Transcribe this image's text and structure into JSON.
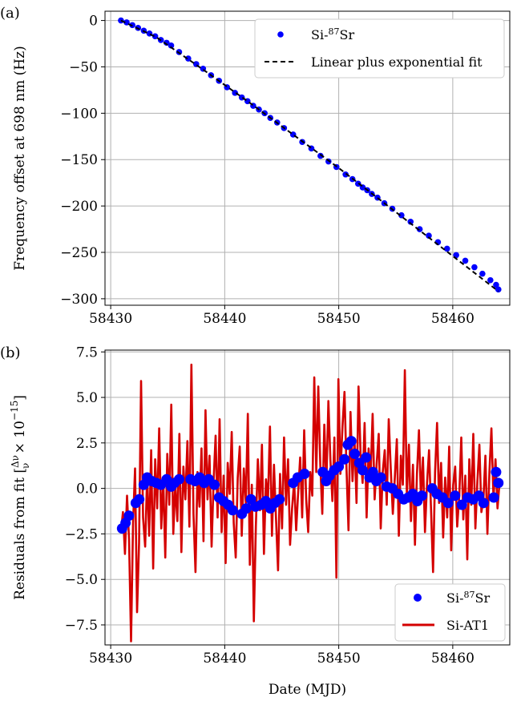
{
  "chart_data": [
    {
      "panel": "(a)",
      "type": "scatter",
      "xlabel": "",
      "ylabel": "Frequency offset at 698 nm (Hz)",
      "xlim": [
        58429.5,
        58465.0
      ],
      "ylim": [
        -307,
        10
      ],
      "xticks": [
        58430,
        58440,
        58450,
        58460
      ],
      "yticks": [
        0,
        -50,
        -100,
        -150,
        -200,
        -250,
        -300
      ],
      "grid": true,
      "legend_position": "top-right",
      "series": [
        {
          "name": "Si-$^{87}$Sr",
          "legend_text": "Si-87Sr",
          "kind": "scatter",
          "color": "#0000ff",
          "x": [
            58430.9,
            58431.4,
            58431.9,
            58432.4,
            58432.9,
            58433.4,
            58433.9,
            58434.4,
            58434.9,
            58435.3,
            58436.0,
            58436.8,
            58437.5,
            58438.1,
            58438.8,
            58439.5,
            58440.2,
            58440.9,
            58441.5,
            58442.0,
            58442.5,
            58443.0,
            58443.5,
            58444.0,
            58444.6,
            58445.2,
            58446.0,
            58446.8,
            58447.6,
            58448.4,
            58449.1,
            58449.8,
            58450.6,
            58451.2,
            58451.7,
            58452.1,
            58452.5,
            58452.9,
            58453.4,
            58454.0,
            58454.7,
            58455.5,
            58456.3,
            58457.1,
            58457.9,
            58458.7,
            58459.5,
            58460.3,
            58461.1,
            58461.9,
            58462.6,
            58463.3,
            58463.8,
            58464.0
          ],
          "y": [
            0,
            -2,
            -5,
            -8,
            -11,
            -14,
            -17,
            -21,
            -24,
            -27,
            -34,
            -41,
            -47,
            -52,
            -59,
            -65,
            -72,
            -78,
            -83,
            -87,
            -92,
            -96,
            -100,
            -105,
            -110,
            -116,
            -123,
            -131,
            -138,
            -146,
            -152,
            -158,
            -166,
            -171,
            -176,
            -180,
            -183,
            -187,
            -191,
            -197,
            -203,
            -210,
            -217,
            -225,
            -232,
            -239,
            -246,
            -253,
            -259,
            -266,
            -273,
            -280,
            -285,
            -290
          ]
        },
        {
          "name": "Linear plus exponential fit",
          "legend_text": "Linear plus exponential fit",
          "kind": "line",
          "style": "dashed",
          "color": "#000000",
          "x": [
            58430.9,
            58434.0,
            58438.0,
            58442.0,
            58446.0,
            58450.0,
            58454.0,
            58458.0,
            58462.0,
            58464.0
          ],
          "y": [
            0,
            -18,
            -52,
            -87,
            -123,
            -159,
            -197,
            -235,
            -273,
            -292
          ]
        }
      ]
    },
    {
      "panel": "(b)",
      "type": "line",
      "xlabel": "Date (MJD)",
      "ylabel": "Residuals from fit [Δν/ν × 10⁻¹⁵]",
      "ylabel_prefix": "Residuals from fit [",
      "ylabel_frac_num": "Δν",
      "ylabel_frac_den": "ν",
      "ylabel_suffix": " × 10",
      "ylabel_exp": "−15",
      "ylabel_close": "]",
      "xlim": [
        58429.5,
        58465.0
      ],
      "ylim": [
        -8.6,
        7.6
      ],
      "xticks": [
        58430,
        58440,
        58450,
        58460
      ],
      "yticks": [
        7.5,
        5.0,
        2.5,
        0.0,
        -2.5,
        -5.0,
        -7.5
      ],
      "grid": true,
      "legend_position": "lower-right",
      "series": [
        {
          "name": "Si-$^{87}$Sr",
          "legend_text": "Si-87Sr",
          "kind": "scatter",
          "color": "#0000ff",
          "x": [
            58431.0,
            58431.3,
            58431.6,
            58432.2,
            58432.5,
            58432.9,
            58433.2,
            58433.6,
            58434.0,
            58434.4,
            58434.9,
            58435.3,
            58435.6,
            58436.0,
            58437.0,
            58437.4,
            58437.8,
            58438.2,
            58438.6,
            58439.1,
            58439.5,
            58439.9,
            58440.3,
            58440.7,
            58441.5,
            58441.9,
            58442.3,
            58442.7,
            58443.2,
            58443.6,
            58444.0,
            58444.4,
            58444.8,
            58446.0,
            58446.4,
            58447.0,
            58448.6,
            58448.9,
            58449.2,
            58449.6,
            58450.0,
            58450.5,
            58450.8,
            58451.1,
            58451.4,
            58451.8,
            58452.1,
            58452.4,
            58452.7,
            58453.0,
            58453.3,
            58453.7,
            58454.2,
            58454.7,
            58455.2,
            58455.7,
            58456.1,
            58456.5,
            58456.9,
            58457.3,
            58458.2,
            58458.6,
            58459.1,
            58459.6,
            58460.2,
            58460.8,
            58461.3,
            58461.8,
            58462.3,
            58462.7,
            58463.6,
            58463.8,
            58464.0
          ],
          "y": [
            -2.2,
            -1.9,
            -1.5,
            -0.8,
            -0.6,
            0.2,
            0.6,
            0.4,
            0.3,
            0.2,
            0.5,
            0.1,
            0.3,
            0.5,
            0.5,
            0.4,
            0.6,
            0.3,
            0.5,
            0.2,
            -0.5,
            -0.7,
            -0.9,
            -1.2,
            -1.4,
            -1.1,
            -0.6,
            -1.0,
            -0.9,
            -0.7,
            -1.1,
            -0.8,
            -0.6,
            0.3,
            0.6,
            0.8,
            0.9,
            0.4,
            0.7,
            1.0,
            1.2,
            1.6,
            2.4,
            2.6,
            1.9,
            1.4,
            1.0,
            1.7,
            0.6,
            0.9,
            0.4,
            0.6,
            0.1,
            0.0,
            -0.3,
            -0.6,
            -0.5,
            -0.3,
            -0.7,
            -0.4,
            0.0,
            -0.3,
            -0.5,
            -0.8,
            -0.4,
            -0.9,
            -0.5,
            -0.6,
            -0.4,
            -0.8,
            -0.5,
            0.9,
            0.3
          ],
          "legend_marker": "dot"
        },
        {
          "name": "Si-AT1",
          "legend_text": "Si-AT1",
          "kind": "line",
          "color": "#d40000",
          "x_start": 58430.9,
          "x_end": 58464.1,
          "y": [
            -2.4,
            -1.3,
            -3.6,
            -0.4,
            -2.8,
            -8.4,
            -1.9,
            1.1,
            -6.8,
            -3.0,
            5.9,
            -1.6,
            -3.2,
            0.8,
            -2.6,
            2.1,
            -4.4,
            1.6,
            -1.1,
            3.3,
            -2.2,
            0.5,
            -3.8,
            1.9,
            -0.9,
            4.6,
            -2.5,
            0.2,
            -1.8,
            3.0,
            -3.5,
            1.2,
            -0.6,
            2.6,
            -2.1,
            6.8,
            -1.4,
            -4.6,
            0.9,
            -1.0,
            2.2,
            -2.9,
            4.3,
            -0.6,
            1.8,
            -3.2,
            0.4,
            2.9,
            -1.6,
            3.8,
            -2.4,
            0.7,
            -4.1,
            1.4,
            -0.3,
            3.1,
            -1.9,
            -3.8,
            0.6,
            2.3,
            -2.6,
            1.1,
            -0.8,
            4.1,
            -4.2,
            0.2,
            -7.3,
            -2.1,
            1.6,
            -1.2,
            2.4,
            -3.6,
            0.5,
            -0.7,
            3.4,
            -2.6,
            1.3,
            -1.7,
            -4.5,
            0.8,
            -2.2,
            2.8,
            -0.9,
            1.6,
            -3.1,
            -1.1,
            0.4,
            -2.3,
            -0.2,
            1.7,
            -1.6,
            3.2,
            -0.6,
            -2.4,
            0.9,
            -0.4,
            6.1,
            0.9,
            5.6,
            1.3,
            -1.4,
            3.5,
            0.2,
            4.8,
            1.6,
            -0.7,
            2.8,
            -4.9,
            6.0,
            0.8,
            3.4,
            5.3,
            1.1,
            -2.3,
            4.2,
            0.4,
            2.7,
            -0.8,
            5.6,
            1.8,
            0.3,
            3.6,
            -1.6,
            2.2,
            0.7,
            4.1,
            -0.6,
            1.4,
            3.0,
            -2.2,
            0.9,
            2.1,
            -0.9,
            3.8,
            1.1,
            -1.4,
            0.6,
            2.7,
            -2.6,
            1.8,
            0.2,
            6.5,
            -0.4,
            2.4,
            -1.8,
            1.3,
            -3.1,
            0.8,
            3.2,
            -0.6,
            1.7,
            -2.4,
            0.3,
            2.1,
            -1.2,
            -4.6,
            0.9,
            3.6,
            -0.8,
            1.4,
            -2.7,
            0.6,
            -1.6,
            2.3,
            -3.4,
            0.2,
            1.2,
            -2.1,
            -0.4,
            2.8,
            -1.7,
            0.7,
            -3.9,
            1.6,
            -0.9,
            3.0,
            -2.2,
            0.4,
            2.4,
            -1.3,
            -0.6,
            1.8,
            -2.5,
            0.9,
            3.3,
            -0.6,
            1.6,
            -1.1,
            0.3
          ]
        }
      ]
    }
  ]
}
